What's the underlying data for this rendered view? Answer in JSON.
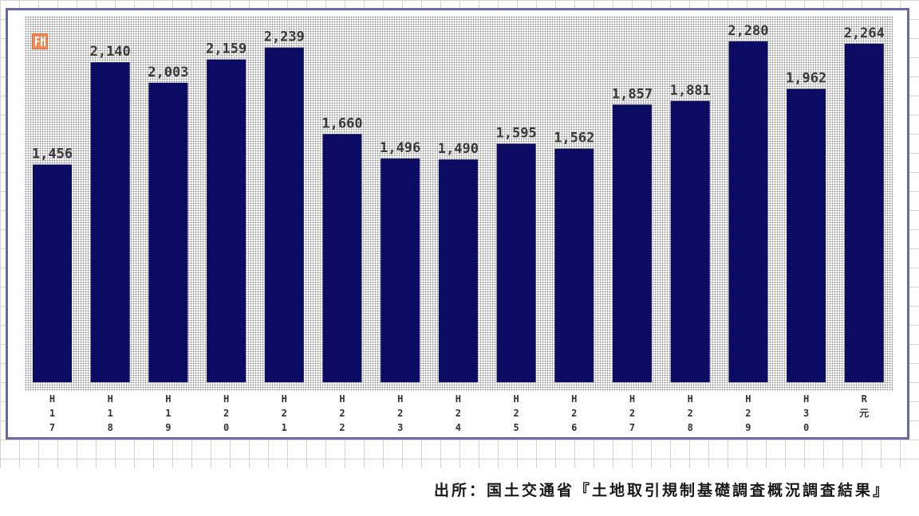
{
  "chart_data": {
    "type": "bar",
    "categories": [
      "H17",
      "H18",
      "H19",
      "H20",
      "H21",
      "H22",
      "H23",
      "H24",
      "H25",
      "H26",
      "H27",
      "H28",
      "H29",
      "H30",
      "R元"
    ],
    "category_ticks": [
      [
        "H",
        "1",
        "7"
      ],
      [
        "H",
        "1",
        "8"
      ],
      [
        "H",
        "1",
        "9"
      ],
      [
        "H",
        "2",
        "0"
      ],
      [
        "H",
        "2",
        "1"
      ],
      [
        "H",
        "2",
        "2"
      ],
      [
        "H",
        "2",
        "3"
      ],
      [
        "H",
        "2",
        "4"
      ],
      [
        "H",
        "2",
        "5"
      ],
      [
        "H",
        "2",
        "6"
      ],
      [
        "H",
        "2",
        "7"
      ],
      [
        "H",
        "2",
        "8"
      ],
      [
        "H",
        "2",
        "9"
      ],
      [
        "H",
        "3",
        "0"
      ],
      [
        "R",
        "元"
      ]
    ],
    "values": [
      1456,
      2140,
      2003,
      2159,
      2239,
      1660,
      1496,
      1490,
      1595,
      1562,
      1857,
      1881,
      2280,
      1962,
      2264
    ],
    "value_labels": [
      "1,456",
      "2,140",
      "2,003",
      "2,159",
      "2,239",
      "1,660",
      "1,496",
      "1,490",
      "1,595",
      "1,562",
      "1,857",
      "1,881",
      "2,280",
      "1,962",
      "2,264"
    ],
    "ylim": [
      0,
      2450
    ],
    "grid": false,
    "legend": "none",
    "colors": {
      "bar": "#0b0b63",
      "frame": "#6a6aa8",
      "badge": "#f28a5a"
    }
  },
  "source_text": "出所：国土交通省『土地取引規制基礎調査概況調査結果』"
}
